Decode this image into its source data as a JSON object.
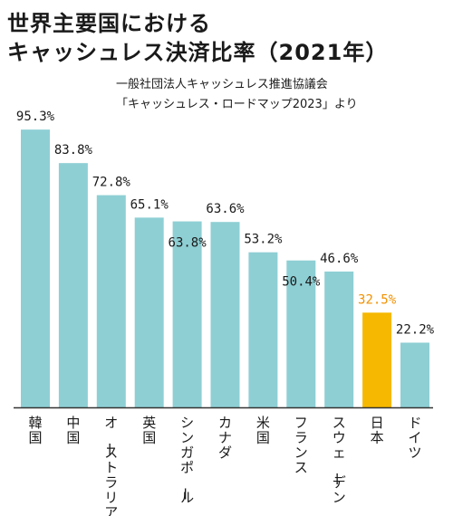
{
  "title_lines": [
    "世界主要国における",
    "キャッシュレス決済比率（2021年）"
  ],
  "source_lines": [
    "一般社団法人キャッシュレス推進協議会",
    "「キャッシュレス・ロードマップ2023」より"
  ],
  "colors": {
    "bar": "#8ecfd4",
    "highlight_bar": "#f6b800",
    "highlight_label": "#f29100",
    "axis": "#333333"
  },
  "chart_data": {
    "type": "bar",
    "title": "世界主要国における キャッシュレス決済比率（2021年）",
    "categories": [
      "韓国",
      "中国",
      "オーストラリア",
      "英国",
      "シンガポール",
      "カナダ",
      "米国",
      "フランス",
      "スウェーデン",
      "日本",
      "ドイツ"
    ],
    "values": [
      95.3,
      83.8,
      72.8,
      65.1,
      63.8,
      63.6,
      53.2,
      50.4,
      46.6,
      32.5,
      22.2
    ],
    "value_labels": [
      "95.3%",
      "83.8%",
      "72.8%",
      "65.1%",
      "63.8%",
      "63.6%",
      "53.2%",
      "50.4%",
      "46.6%",
      "32.5%",
      "22.2%"
    ],
    "highlight": "日本",
    "ylim": [
      0,
      100
    ],
    "grid": false,
    "legend": "none",
    "unit": "%"
  }
}
